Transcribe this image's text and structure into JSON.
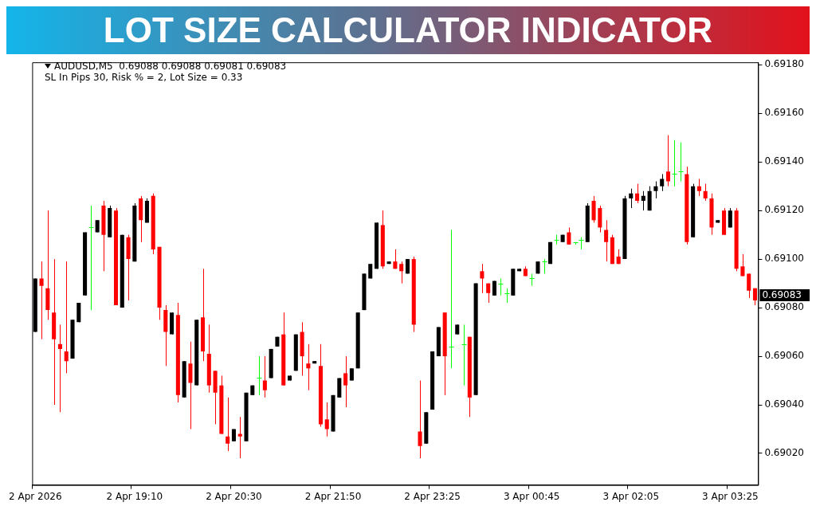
{
  "chart_data": {
    "type": "candlestick",
    "title": "LOT SIZE CALCULATOR INDICATOR",
    "annotations": [
      "AUDUSD,M5  0.69088 0.69088 0.69081 0.69083",
      "SL In Pips 30, Risk % = 2, Lot Size = 0.33",
      "0.69083"
    ],
    "categories": [
      "2 Apr 2026",
      null,
      null,
      null,
      null,
      null,
      null,
      null,
      null,
      null,
      null,
      null,
      null,
      null,
      null,
      null,
      "2 Apr 19:10",
      null,
      null,
      null,
      null,
      null,
      null,
      null,
      null,
      null,
      null,
      null,
      null,
      null,
      null,
      null,
      "2 Apr 20:30",
      null,
      null,
      null,
      null,
      null,
      null,
      null,
      null,
      null,
      null,
      null,
      null,
      null,
      null,
      null,
      "2 Apr 21:50",
      null,
      null,
      null,
      null,
      null,
      null,
      null,
      null,
      null,
      null,
      null,
      null,
      null,
      null,
      null,
      "2 Apr 23:25",
      null,
      null,
      null,
      null,
      null,
      null,
      null,
      null,
      null,
      null,
      null,
      null,
      null,
      null,
      null,
      "3 Apr 00:45",
      null,
      null,
      null,
      null,
      null,
      null,
      null,
      null,
      null,
      null,
      null,
      null,
      null,
      null,
      null,
      "3 Apr 02:05",
      null,
      null,
      null,
      null,
      null,
      null,
      null,
      null,
      null,
      null,
      null,
      null,
      null,
      null,
      null,
      "3 Apr 03:25",
      null,
      null,
      null,
      null
    ],
    "ohlc": [
      [
        0.6907,
        0.69092,
        0.6907,
        0.69092
      ],
      [
        0.69092,
        0.69099,
        0.69067,
        0.69089
      ],
      [
        0.69088,
        0.6912,
        0.69075,
        0.69079
      ],
      [
        0.69078,
        0.691,
        0.6904,
        0.69067
      ],
      [
        0.69065,
        0.69073,
        0.69037,
        0.69063
      ],
      [
        0.69062,
        0.69099,
        0.69053,
        0.69058
      ],
      [
        0.69059,
        0.69075,
        0.69059,
        0.69075
      ],
      [
        0.69074,
        0.69082,
        0.69074,
        0.69082
      ],
      [
        0.69085,
        0.69111,
        0.69085,
        0.69111
      ],
      [
        0.69113,
        0.69122,
        0.69079,
        0.69113
      ],
      [
        0.69111,
        0.69116,
        0.69111,
        0.69116
      ],
      [
        0.69122,
        0.69124,
        0.69095,
        0.6911
      ],
      [
        0.69109,
        0.69122,
        0.69109,
        0.69121
      ],
      [
        0.6912,
        0.69121,
        0.69081,
        0.69081
      ],
      [
        0.6908,
        0.6911,
        0.6908,
        0.6911
      ],
      [
        0.69109,
        0.6911,
        0.69083,
        0.691
      ],
      [
        0.69099,
        0.69123,
        0.69099,
        0.69122
      ],
      [
        0.69125,
        0.69126,
        0.69107,
        0.69116
      ],
      [
        0.69115,
        0.69125,
        0.69115,
        0.69124
      ],
      [
        0.69126,
        0.69127,
        0.69102,
        0.69104
      ],
      [
        0.69105,
        0.69105,
        0.69075,
        0.6908
      ],
      [
        0.69079,
        0.69081,
        0.69056,
        0.6907
      ],
      [
        0.69069,
        0.69078,
        0.69069,
        0.69078
      ],
      [
        0.69077,
        0.69082,
        0.69041,
        0.69044
      ],
      [
        0.69043,
        0.69058,
        0.69043,
        0.69058
      ],
      [
        0.69057,
        0.69066,
        0.6903,
        0.69049
      ],
      [
        0.69048,
        0.69075,
        0.69048,
        0.69075
      ],
      [
        0.69076,
        0.69096,
        0.69058,
        0.69062
      ],
      [
        0.69061,
        0.69073,
        0.69045,
        0.69048
      ],
      [
        0.69054,
        0.69054,
        0.69032,
        0.69045
      ],
      [
        0.69048,
        0.69052,
        0.69028,
        0.69028
      ],
      [
        0.69027,
        0.69043,
        0.69021,
        0.69024
      ],
      [
        0.69025,
        0.6903,
        0.69025,
        0.6903
      ],
      [
        0.69028,
        0.69035,
        0.69018,
        0.69027
      ],
      [
        0.69025,
        0.69045,
        0.69025,
        0.69045
      ],
      [
        0.69044,
        0.69048,
        0.69044,
        0.69048
      ],
      [
        0.69051,
        0.6906,
        0.69044,
        0.69051
      ],
      [
        0.6905,
        0.6906,
        0.69043,
        0.69046
      ],
      [
        0.69051,
        0.69063,
        0.69051,
        0.69063
      ],
      [
        0.69064,
        0.69068,
        0.69064,
        0.69068
      ],
      [
        0.69069,
        0.69078,
        0.69048,
        0.69048
      ],
      [
        0.6905,
        0.69052,
        0.6905,
        0.69052
      ],
      [
        0.69054,
        0.69069,
        0.69054,
        0.69069
      ],
      [
        0.6907,
        0.69074,
        0.69052,
        0.6906
      ],
      [
        0.69057,
        0.69065,
        0.69046,
        0.69055
      ],
      [
        0.69057,
        0.69058,
        0.69057,
        0.69058
      ],
      [
        0.69056,
        0.69065,
        0.69031,
        0.69032
      ],
      [
        0.69034,
        0.69041,
        0.69027,
        0.6903
      ],
      [
        0.69029,
        0.69044,
        0.69029,
        0.69044
      ],
      [
        0.69043,
        0.69051,
        0.69043,
        0.69051
      ],
      [
        0.69053,
        0.6906,
        0.69039,
        0.69048
      ],
      [
        0.6905,
        0.69055,
        0.6905,
        0.69055
      ],
      [
        0.69055,
        0.69078,
        0.69055,
        0.69078
      ],
      [
        0.69079,
        0.69094,
        0.69079,
        0.69094
      ],
      [
        0.69092,
        0.69098,
        0.69092,
        0.69098
      ],
      [
        0.69096,
        0.69115,
        0.69096,
        0.69115
      ],
      [
        0.69114,
        0.6912,
        0.69096,
        0.69097
      ],
      [
        0.69098,
        0.69099,
        0.69098,
        0.69099
      ],
      [
        0.69099,
        0.69104,
        0.69096,
        0.69096
      ],
      [
        0.69098,
        0.69099,
        0.6909,
        0.69095
      ],
      [
        0.69094,
        0.691,
        0.69094,
        0.691
      ],
      [
        0.691,
        0.69101,
        0.6907,
        0.69073
      ],
      [
        0.69029,
        0.6905,
        0.69018,
        0.69023
      ],
      [
        0.69024,
        0.69037,
        0.69024,
        0.69037
      ],
      [
        0.69038,
        0.69062,
        0.69038,
        0.69062
      ],
      [
        0.6906,
        0.69072,
        0.6906,
        0.69072
      ],
      [
        0.69078,
        0.69078,
        0.69044,
        0.6906
      ],
      [
        0.69064,
        0.69112,
        0.69055,
        0.69064
      ],
      [
        0.69069,
        0.69073,
        0.69069,
        0.69073
      ],
      [
        0.69065,
        0.69073,
        0.69048,
        0.69065
      ],
      [
        0.69068,
        0.69068,
        0.69035,
        0.69043
      ],
      [
        0.69044,
        0.6909,
        0.69044,
        0.6909
      ],
      [
        0.69095,
        0.69098,
        0.69086,
        0.69092
      ],
      [
        0.6909,
        0.6909,
        0.69082,
        0.69086
      ],
      [
        0.69085,
        0.69091,
        0.69085,
        0.69091
      ],
      [
        0.6909,
        0.69092,
        0.69085,
        0.6909
      ],
      [
        0.69086,
        0.69088,
        0.69082,
        0.69086
      ],
      [
        0.69085,
        0.69096,
        0.69085,
        0.69096
      ],
      [
        0.69095,
        0.69096,
        0.69095,
        0.69096
      ],
      [
        0.69096,
        0.69097,
        0.69093,
        0.69093
      ],
      [
        0.69092,
        0.69094,
        0.69089,
        0.69092
      ],
      [
        0.69094,
        0.69099,
        0.69094,
        0.69099
      ],
      [
        0.69099,
        0.691,
        0.69094,
        0.69099
      ],
      [
        0.69098,
        0.69107,
        0.69098,
        0.69107
      ],
      [
        0.69108,
        0.6911,
        0.69106,
        0.69108
      ],
      [
        0.69107,
        0.6911,
        0.69107,
        0.6911
      ],
      [
        0.69111,
        0.69113,
        0.69106,
        0.69106
      ],
      [
        0.69107,
        0.69107,
        0.69106,
        0.69107
      ],
      [
        0.69108,
        0.69109,
        0.69104,
        0.69108
      ],
      [
        0.69107,
        0.69123,
        0.69107,
        0.69122
      ],
      [
        0.69124,
        0.69126,
        0.69115,
        0.69116
      ],
      [
        0.69121,
        0.69122,
        0.69111,
        0.69113
      ],
      [
        0.69112,
        0.69116,
        0.69099,
        0.69107
      ],
      [
        0.69109,
        0.6911,
        0.69098,
        0.69098
      ],
      [
        0.69101,
        0.69104,
        0.69098,
        0.69098
      ],
      [
        0.691,
        0.69126,
        0.691,
        0.69125
      ],
      [
        0.69125,
        0.69129,
        0.69121,
        0.69127
      ],
      [
        0.69127,
        0.69131,
        0.69123,
        0.69124
      ],
      [
        0.69124,
        0.69128,
        0.6912,
        0.69126
      ],
      [
        0.6912,
        0.6913,
        0.6912,
        0.69128
      ],
      [
        0.69128,
        0.69132,
        0.69125,
        0.6913
      ],
      [
        0.6913,
        0.69135,
        0.69128,
        0.69133
      ],
      [
        0.69136,
        0.69151,
        0.6913,
        0.69132
      ],
      [
        0.69135,
        0.69149,
        0.6913,
        0.69135
      ],
      [
        0.69136,
        0.69148,
        0.69132,
        0.69136
      ],
      [
        0.69135,
        0.69138,
        0.69106,
        0.69107
      ],
      [
        0.69109,
        0.69131,
        0.69109,
        0.6913
      ],
      [
        0.6913,
        0.69133,
        0.69126,
        0.69128
      ],
      [
        0.69128,
        0.69131,
        0.69124,
        0.69125
      ],
      [
        0.69125,
        0.69127,
        0.6911,
        0.69113
      ],
      [
        0.69115,
        0.69116,
        0.69115,
        0.69116
      ],
      [
        0.6912,
        0.69121,
        0.6911,
        0.6911
      ],
      [
        0.69113,
        0.69121,
        0.69113,
        0.6912
      ],
      [
        0.6912,
        0.69121,
        0.69095,
        0.69096
      ],
      [
        0.69097,
        0.69102,
        0.69093,
        0.69093
      ],
      [
        0.69094,
        0.69094,
        0.69084,
        0.69087
      ],
      [
        0.69088,
        0.69088,
        0.69081,
        0.69083
      ]
    ],
    "colors": [
      "#000000",
      "#ff0000",
      "#ff0000",
      "#ff0000",
      "#ff0000",
      "#ff0000",
      "#000000",
      "#000000",
      "#000000",
      "#00ff00",
      "#000000",
      "#ff0000",
      "#000000",
      "#ff0000",
      "#000000",
      "#ff0000",
      "#000000",
      "#ff0000",
      "#000000",
      "#ff0000",
      "#ff0000",
      "#ff0000",
      "#000000",
      "#ff0000",
      "#000000",
      "#ff0000",
      "#000000",
      "#ff0000",
      "#ff0000",
      "#ff0000",
      "#ff0000",
      "#ff0000",
      "#000000",
      "#ff0000",
      "#000000",
      "#000000",
      "#00ff00",
      "#ff0000",
      "#000000",
      "#000000",
      "#ff0000",
      "#000000",
      "#000000",
      "#ff0000",
      "#ff0000",
      "#000000",
      "#ff0000",
      "#ff0000",
      "#000000",
      "#000000",
      "#ff0000",
      "#000000",
      "#000000",
      "#000000",
      "#000000",
      "#000000",
      "#ff0000",
      "#000000",
      "#ff0000",
      "#ff0000",
      "#000000",
      "#ff0000",
      "#ff0000",
      "#000000",
      "#000000",
      "#000000",
      "#ff0000",
      "#00ff00",
      "#000000",
      "#00ff00",
      "#ff0000",
      "#000000",
      "#ff0000",
      "#ff0000",
      "#000000",
      "#00ff00",
      "#00ff00",
      "#000000",
      "#000000",
      "#ff0000",
      "#00ff00",
      "#000000",
      "#00ff00",
      "#000000",
      "#00ff00",
      "#000000",
      "#ff0000",
      "#00ff00",
      "#00ff00",
      "#000000",
      "#ff0000",
      "#ff0000",
      "#ff0000",
      "#ff0000",
      "#ff0000",
      "#000000",
      "#000000",
      "#ff0000",
      "#000000",
      "#000000",
      "#000000",
      "#000000",
      "#ff0000",
      "#00ff00",
      "#00ff00",
      "#ff0000",
      "#000000",
      "#ff0000",
      "#ff0000",
      "#ff0000",
      "#000000",
      "#ff0000",
      "#000000",
      "#ff0000",
      "#ff0000",
      "#ff0000",
      "#ff0000"
    ],
    "ylim": [
      0.69007,
      0.69181
    ],
    "yticks": [
      {
        "value": 0.6902,
        "label": "0.69020"
      },
      {
        "value": 0.6904,
        "label": "0.69040"
      },
      {
        "value": 0.6906,
        "label": "0.69060"
      },
      {
        "value": 0.6908,
        "label": "0.69080"
      },
      {
        "value": 0.691,
        "label": "0.69100"
      },
      {
        "value": 0.6912,
        "label": "0.69120"
      },
      {
        "value": 0.6914,
        "label": "0.69140"
      },
      {
        "value": 0.6916,
        "label": "0.69160"
      },
      {
        "value": 0.6918,
        "label": "0.69180"
      }
    ]
  }
}
